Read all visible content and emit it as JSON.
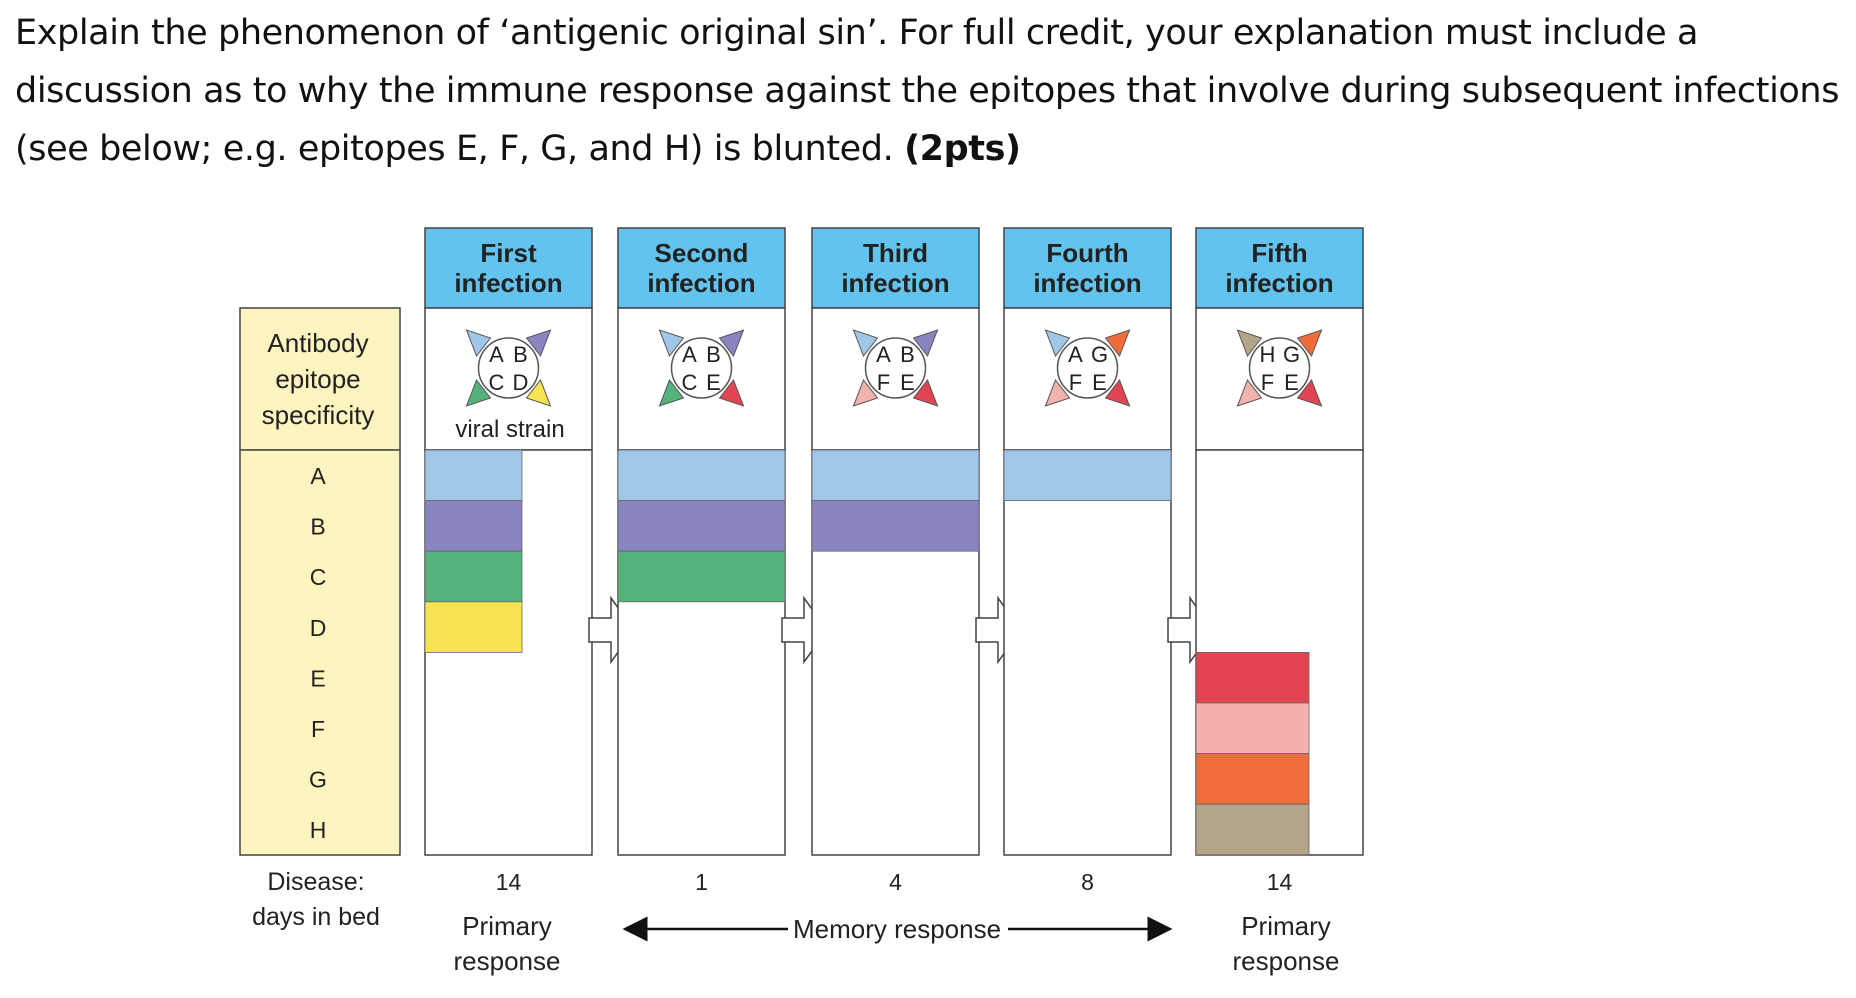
{
  "question": {
    "text": "Explain the phenomenon of ‘antigenic original sin’. For full credit, your explanation must include a discussion as to why the immune response against the epitopes that involve during subsequent infections (see below; e.g. epitopes E, F, G, and H) is blunted.",
    "points": "(2pts)"
  },
  "row_header": {
    "line1": "Antibody",
    "line2": "epitope",
    "line3": "specificity",
    "epitopes": [
      "A",
      "B",
      "C",
      "D",
      "E",
      "F",
      "G",
      "H"
    ],
    "disease_line1": "Disease:",
    "disease_line2": "days in bed"
  },
  "colors": {
    "header_fill": "#62c4ee",
    "label_column_fill": "#fdf4c0",
    "epitope_colors": {
      "A": "#a0c6e8",
      "B": "#8a85c0",
      "C": "#55b27a",
      "D": "#f8e450",
      "E": "#e34452",
      "F": "#f4b2ae",
      "G": "#ee6d3b",
      "H": "#b3a48a"
    }
  },
  "infections": [
    {
      "title1": "First",
      "title2": "infection",
      "strain": [
        "A",
        "B",
        "C",
        "D"
      ],
      "antibodies": [
        "A",
        "B",
        "C",
        "D"
      ],
      "days": "14"
    },
    {
      "title1": "Second",
      "title2": "infection",
      "strain": [
        "A",
        "B",
        "C",
        "E"
      ],
      "antibodies": [
        "A",
        "B",
        "C"
      ],
      "days": "1"
    },
    {
      "title1": "Third",
      "title2": "infection",
      "strain": [
        "A",
        "B",
        "F",
        "E"
      ],
      "antibodies": [
        "A",
        "B"
      ],
      "days": "4"
    },
    {
      "title1": "Fourth",
      "title2": "infection",
      "strain": [
        "A",
        "G",
        "F",
        "E"
      ],
      "antibodies": [
        "A"
      ],
      "days": "8"
    },
    {
      "title1": "Fifth",
      "title2": "infection",
      "strain": [
        "H",
        "G",
        "F",
        "E"
      ],
      "antibodies": [
        "E",
        "F",
        "G",
        "H"
      ],
      "days": "14"
    }
  ],
  "strain_label": "viral strain",
  "bottom": {
    "primary_left": [
      "Primary",
      "response"
    ],
    "memory": "Memory response",
    "primary_right": [
      "Primary",
      "response"
    ]
  }
}
